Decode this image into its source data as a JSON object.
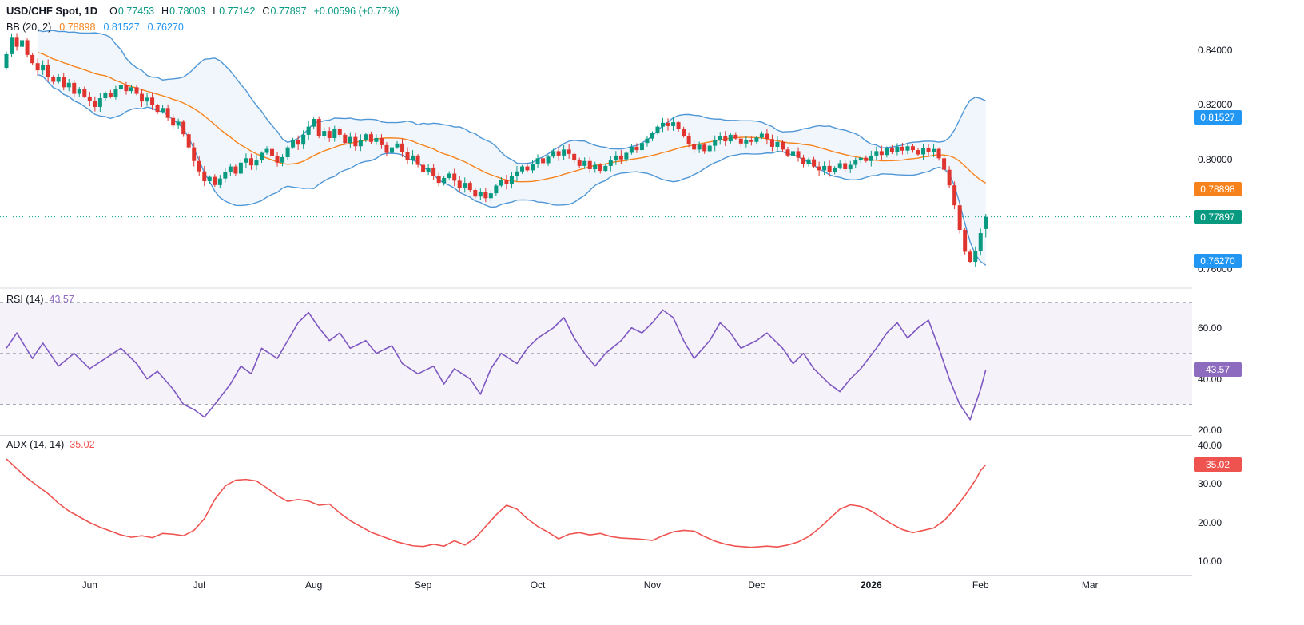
{
  "header": {
    "symbol": "USD/CHF Spot, 1D",
    "ohlc": [
      {
        "label": "O",
        "value": "0.77453"
      },
      {
        "label": "H",
        "value": "0.78003"
      },
      {
        "label": "L",
        "value": "0.77142"
      },
      {
        "label": "C",
        "value": "0.77897"
      }
    ],
    "change": "+0.00596 (+0.77%)",
    "bb": {
      "label": "BB (20, 2)",
      "basis": "0.78898",
      "upper": "0.81527",
      "lower": "0.76270"
    }
  },
  "rsi_header": {
    "label": "RSI (14)",
    "value": "43.57"
  },
  "adx_header": {
    "label": "ADX (14, 14)",
    "value": "35.02"
  },
  "colors": {
    "up": "#089981",
    "down": "#e0342f",
    "bb_line": "#4f97d6",
    "bb_fill": "#5b9bd5",
    "bb_basis": "#f7821b",
    "rsi_line": "#7e57c2",
    "adx_line": "#ef5350",
    "badge_blue": "#2196f3",
    "badge_orange": "#f7821b",
    "badge_green": "#089981",
    "badge_purple": "#8d6bbf",
    "badge_red": "#ef5350",
    "level_line": "#9b9eab",
    "separator": "#d7dae0",
    "text_dark": "#131722"
  },
  "axis": {
    "badges": [
      {
        "text": "0.81527",
        "value": 0.81527,
        "panel": "price",
        "color": "blue",
        "name": "bb-upper-badge"
      },
      {
        "text": "0.78898",
        "value": 0.78898,
        "panel": "price",
        "color": "orange",
        "name": "bb-basis-badge"
      },
      {
        "text": "0.77897",
        "value": 0.77897,
        "panel": "price",
        "color": "green",
        "name": "last-price-badge"
      },
      {
        "text": "0.76270",
        "value": 0.7627,
        "panel": "price",
        "color": "blue",
        "name": "bb-lower-badge"
      },
      {
        "text": "43.57",
        "value": 43.57,
        "panel": "rsi",
        "color": "purple",
        "name": "rsi-value-badge"
      },
      {
        "text": "35.02",
        "value": 35.02,
        "panel": "adx",
        "color": "red",
        "name": "adx-value-badge"
      }
    ]
  },
  "chart_data": {
    "type": "candlestick-with-indicators",
    "symbol": "USD/CHF Spot",
    "timeframe": "1D",
    "price": {
      "ylim": [
        0.7555,
        0.856
      ],
      "yticks": [
        0.84,
        0.82,
        0.8,
        0.78,
        0.76
      ],
      "ytick_labels": [
        "0.84000",
        "0.82000",
        "0.80000",
        "0.78000",
        "0.76000"
      ],
      "current_price": 0.77897,
      "last_ohlc": {
        "o": 0.77453,
        "h": 0.78003,
        "l": 0.77142,
        "c": 0.77897
      },
      "bollinger": {
        "period": 20,
        "stdev_mult": 2,
        "last_basis": 0.78898,
        "last_upper": 0.81527,
        "last_lower": 0.7627
      },
      "closes": [
        0.8385,
        0.8448,
        0.8412,
        0.8436,
        0.8382,
        0.8352,
        0.8326,
        0.8346,
        0.8302,
        0.8284,
        0.8302,
        0.8264,
        0.828,
        0.824,
        0.8258,
        0.823,
        0.8214,
        0.8192,
        0.8224,
        0.8244,
        0.823,
        0.8256,
        0.8272,
        0.825,
        0.8264,
        0.824,
        0.8212,
        0.8226,
        0.8198,
        0.8174,
        0.8188,
        0.8152,
        0.8124,
        0.8138,
        0.8092,
        0.8044,
        0.7994,
        0.7956,
        0.792,
        0.7936,
        0.7906,
        0.793,
        0.7954,
        0.7974,
        0.7948,
        0.7988,
        0.8004,
        0.7978,
        0.7996,
        0.8024,
        0.8038,
        0.8012,
        0.7988,
        0.8008,
        0.8044,
        0.807,
        0.8054,
        0.809,
        0.812,
        0.8148,
        0.8084,
        0.8104,
        0.8078,
        0.8112,
        0.809,
        0.806,
        0.8082,
        0.8048,
        0.8072,
        0.8092,
        0.8064,
        0.8078,
        0.8052,
        0.8024,
        0.8044,
        0.8058,
        0.8028,
        0.7998,
        0.8014,
        0.798,
        0.7954,
        0.797,
        0.794,
        0.7914,
        0.7932,
        0.7948,
        0.7922,
        0.7896,
        0.7914,
        0.7888,
        0.7864,
        0.788,
        0.7858,
        0.7876,
        0.7904,
        0.7926,
        0.791,
        0.7938,
        0.7956,
        0.7974,
        0.796,
        0.7984,
        0.8004,
        0.7986,
        0.801,
        0.803,
        0.8014,
        0.8036,
        0.802,
        0.7996,
        0.7976,
        0.7994,
        0.7964,
        0.798,
        0.7958,
        0.7976,
        0.7996,
        0.8014,
        0.8,
        0.8024,
        0.8046,
        0.8034,
        0.806,
        0.8076,
        0.8096,
        0.812,
        0.8134,
        0.8122,
        0.8136,
        0.811,
        0.8086,
        0.8056,
        0.8036,
        0.8054,
        0.803,
        0.805,
        0.807,
        0.8084,
        0.8066,
        0.809,
        0.8076,
        0.8058,
        0.8072,
        0.8064,
        0.808,
        0.8094,
        0.8074,
        0.8046,
        0.8064,
        0.8036,
        0.8014,
        0.803,
        0.8006,
        0.7984,
        0.8,
        0.7974,
        0.796,
        0.7976,
        0.7954,
        0.797,
        0.7986,
        0.7964,
        0.798,
        0.7996,
        0.8006,
        0.7994,
        0.8014,
        0.803,
        0.8016,
        0.8042,
        0.8026,
        0.8046,
        0.8032,
        0.8048,
        0.8034,
        0.8018,
        0.804,
        0.8026,
        0.8038,
        0.8004,
        0.7962,
        0.7905,
        0.7832,
        0.7742,
        0.7662,
        0.7625,
        0.7664,
        0.77301,
        0.77897
      ]
    },
    "rsi": {
      "period": 14,
      "last": 43.57,
      "ylim": [
        18,
        74
      ],
      "yticks": [
        60,
        40,
        20
      ],
      "levels": [
        70,
        50,
        30
      ],
      "band": [
        30,
        70
      ],
      "points": [
        [
          0,
          52
        ],
        [
          2,
          58
        ],
        [
          5,
          48
        ],
        [
          7,
          54
        ],
        [
          10,
          45
        ],
        [
          13,
          50
        ],
        [
          16,
          44
        ],
        [
          19,
          48
        ],
        [
          22,
          52
        ],
        [
          25,
          46
        ],
        [
          27,
          40
        ],
        [
          29,
          43
        ],
        [
          32,
          36
        ],
        [
          34,
          30
        ],
        [
          36,
          28
        ],
        [
          38,
          25
        ],
        [
          40,
          30
        ],
        [
          43,
          38
        ],
        [
          45,
          45
        ],
        [
          47,
          42
        ],
        [
          49,
          52
        ],
        [
          52,
          48
        ],
        [
          54,
          55
        ],
        [
          56,
          62
        ],
        [
          58,
          66
        ],
        [
          60,
          60
        ],
        [
          62,
          55
        ],
        [
          64,
          58
        ],
        [
          66,
          52
        ],
        [
          69,
          55
        ],
        [
          71,
          50
        ],
        [
          74,
          53
        ],
        [
          76,
          46
        ],
        [
          79,
          42
        ],
        [
          82,
          45
        ],
        [
          84,
          38
        ],
        [
          86,
          44
        ],
        [
          89,
          40
        ],
        [
          91,
          34
        ],
        [
          93,
          44
        ],
        [
          95,
          50
        ],
        [
          98,
          46
        ],
        [
          100,
          52
        ],
        [
          102,
          56
        ],
        [
          105,
          60
        ],
        [
          107,
          64
        ],
        [
          109,
          56
        ],
        [
          111,
          50
        ],
        [
          113,
          45
        ],
        [
          115,
          50
        ],
        [
          118,
          55
        ],
        [
          120,
          60
        ],
        [
          122,
          58
        ],
        [
          124,
          62
        ],
        [
          126,
          67
        ],
        [
          128,
          64
        ],
        [
          130,
          55
        ],
        [
          132,
          48
        ],
        [
          135,
          55
        ],
        [
          137,
          62
        ],
        [
          139,
          58
        ],
        [
          141,
          52
        ],
        [
          144,
          55
        ],
        [
          146,
          58
        ],
        [
          149,
          52
        ],
        [
          151,
          46
        ],
        [
          153,
          50
        ],
        [
          155,
          44
        ],
        [
          158,
          38
        ],
        [
          160,
          35
        ],
        [
          162,
          40
        ],
        [
          164,
          44
        ],
        [
          167,
          52
        ],
        [
          169,
          58
        ],
        [
          171,
          62
        ],
        [
          173,
          56
        ],
        [
          175,
          60
        ],
        [
          177,
          63
        ],
        [
          179,
          52
        ],
        [
          181,
          40
        ],
        [
          183,
          30
        ],
        [
          185,
          24
        ],
        [
          186,
          30
        ],
        [
          187,
          36
        ],
        [
          188,
          43.57
        ]
      ]
    },
    "adx": {
      "period": "14, 14",
      "last": 35.02,
      "ylim": [
        6.5,
        42.5
      ],
      "yticks": [
        40,
        30,
        20,
        10
      ],
      "points": [
        [
          0,
          36.5
        ],
        [
          2,
          34
        ],
        [
          4,
          31.5
        ],
        [
          6,
          29.5
        ],
        [
          8,
          27.5
        ],
        [
          10,
          25
        ],
        [
          12,
          23
        ],
        [
          14,
          21.5
        ],
        [
          16,
          20
        ],
        [
          18,
          18.8
        ],
        [
          20,
          17.8
        ],
        [
          22,
          16.8
        ],
        [
          24,
          16.2
        ],
        [
          26,
          16.6
        ],
        [
          28,
          16.1
        ],
        [
          30,
          17.2
        ],
        [
          32,
          17
        ],
        [
          34,
          16.6
        ],
        [
          36,
          18
        ],
        [
          38,
          21
        ],
        [
          40,
          26
        ],
        [
          42,
          29.5
        ],
        [
          44,
          31
        ],
        [
          46,
          31.2
        ],
        [
          48,
          30.8
        ],
        [
          50,
          29
        ],
        [
          52,
          27
        ],
        [
          54,
          25.5
        ],
        [
          56,
          26
        ],
        [
          58,
          25.6
        ],
        [
          60,
          24.5
        ],
        [
          62,
          24.8
        ],
        [
          64,
          22.5
        ],
        [
          66,
          20.5
        ],
        [
          68,
          19
        ],
        [
          70,
          17.5
        ],
        [
          72,
          16.5
        ],
        [
          75,
          15
        ],
        [
          78,
          14
        ],
        [
          80,
          13.8
        ],
        [
          82,
          14.4
        ],
        [
          84,
          13.9
        ],
        [
          86,
          15.3
        ],
        [
          88,
          14.2
        ],
        [
          90,
          16
        ],
        [
          92,
          19
        ],
        [
          94,
          22
        ],
        [
          96,
          24.5
        ],
        [
          98,
          23.5
        ],
        [
          100,
          21
        ],
        [
          102,
          19
        ],
        [
          104,
          17.5
        ],
        [
          106,
          15.8
        ],
        [
          108,
          17
        ],
        [
          110,
          17.4
        ],
        [
          112,
          16.8
        ],
        [
          114,
          17.2
        ],
        [
          116,
          16.4
        ],
        [
          118,
          16
        ],
        [
          121,
          15.8
        ],
        [
          124,
          15.4
        ],
        [
          126,
          16.6
        ],
        [
          128,
          17.6
        ],
        [
          130,
          18
        ],
        [
          132,
          17.8
        ],
        [
          134,
          16.4
        ],
        [
          136,
          15.2
        ],
        [
          138,
          14.4
        ],
        [
          140,
          13.9
        ],
        [
          143,
          13.6
        ],
        [
          146,
          13.9
        ],
        [
          148,
          13.7
        ],
        [
          150,
          14.2
        ],
        [
          152,
          15
        ],
        [
          154,
          16.4
        ],
        [
          156,
          18.5
        ],
        [
          158,
          21
        ],
        [
          160,
          23.5
        ],
        [
          162,
          24.6
        ],
        [
          164,
          24.2
        ],
        [
          166,
          23
        ],
        [
          168,
          21.2
        ],
        [
          170,
          19.6
        ],
        [
          172,
          18.2
        ],
        [
          174,
          17.4
        ],
        [
          176,
          18
        ],
        [
          178,
          18.6
        ],
        [
          180,
          20.5
        ],
        [
          182,
          23.5
        ],
        [
          184,
          27
        ],
        [
          186,
          31
        ],
        [
          187,
          33.5
        ],
        [
          188,
          35.02
        ]
      ]
    },
    "x": {
      "months": [
        [
          "Jun",
          16
        ],
        [
          "Jul",
          37
        ],
        [
          "Aug",
          59
        ],
        [
          "Sep",
          80
        ],
        [
          "Oct",
          102
        ],
        [
          "Nov",
          124
        ],
        [
          "Dec",
          144
        ],
        [
          "2026",
          166
        ],
        [
          "Feb",
          187
        ],
        [
          "Mar",
          208
        ]
      ]
    },
    "render": {
      "wick_unit": 0.0011,
      "wick_seq": [
        0.9,
        1.5,
        0.6,
        1.2,
        1.8,
        0.8,
        1.3,
        0.5,
        1.6,
        1.0
      ],
      "first_open_drop": 0.005
    }
  }
}
